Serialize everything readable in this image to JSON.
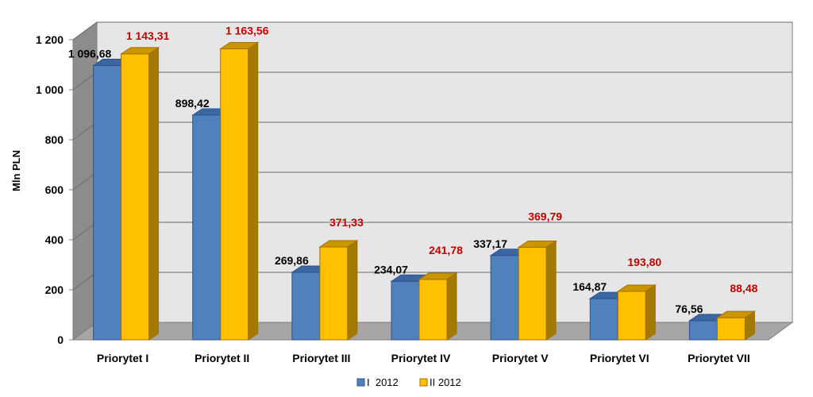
{
  "chart_data": {
    "type": "bar",
    "ylabel": "Mln PLN",
    "ylim": [
      0,
      1200
    ],
    "yticks": [
      "0",
      "200",
      "400",
      "600",
      "800",
      "1 000",
      "1 200"
    ],
    "ytick_values": [
      0,
      200,
      400,
      600,
      800,
      1000,
      1200
    ],
    "categories": [
      "Priorytet I",
      "Priorytet II",
      "Priorytet III",
      "Priorytet IV",
      "Priorytet V",
      "Priorytet VI",
      "Priorytet VII"
    ],
    "series": [
      {
        "name": "I 2012",
        "color": "#4f81bd",
        "values": [
          1096.68,
          898.42,
          269.86,
          234.07,
          337.17,
          164.87,
          76.56
        ],
        "labels": [
          "1 096,68",
          "898,42",
          "269,86",
          "234,07",
          "337,17",
          "164,87",
          "76,56"
        ]
      },
      {
        "name": "II 2012",
        "color": "#ffc000",
        "values": [
          1143.31,
          1163.56,
          371.33,
          241.78,
          369.79,
          193.8,
          88.48
        ],
        "labels": [
          "1 143,31",
          "1 163,56",
          "371,33",
          "241,78",
          "369,79",
          "193,80",
          "88,48"
        ]
      }
    ],
    "legend": {
      "position": "bottom",
      "items": [
        "I  2012",
        "II 2012"
      ]
    },
    "grid": true,
    "style": "3d-clustered-column"
  }
}
